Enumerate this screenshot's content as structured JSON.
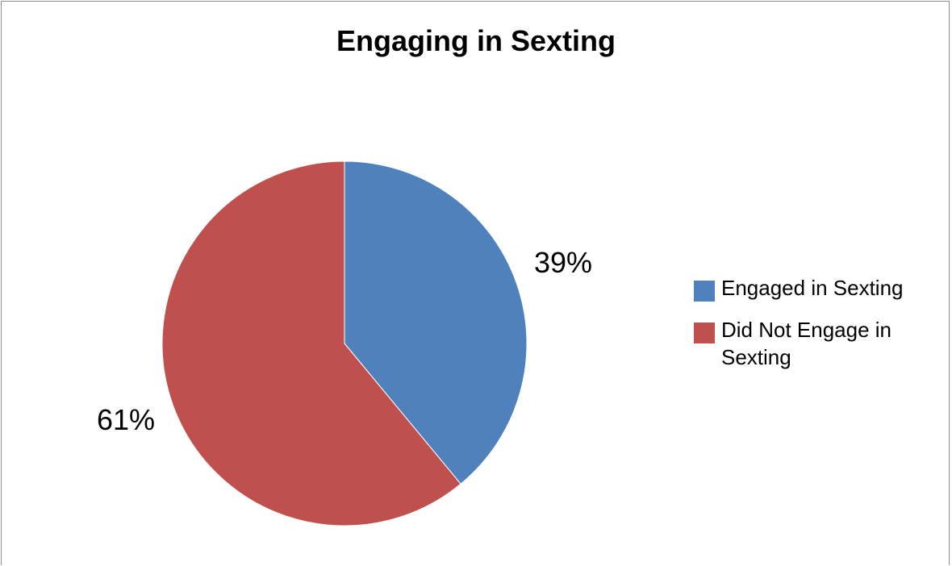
{
  "chart_data": {
    "type": "pie",
    "title": "Engaging in Sexting",
    "categories": [
      "Engaged in Sexting",
      "Did Not Engage in Sexting"
    ],
    "values": [
      39,
      61
    ],
    "data_labels": [
      "39%",
      "61%"
    ],
    "colors": [
      "#4f81bd",
      "#c0504d"
    ],
    "legend_position": "right"
  }
}
